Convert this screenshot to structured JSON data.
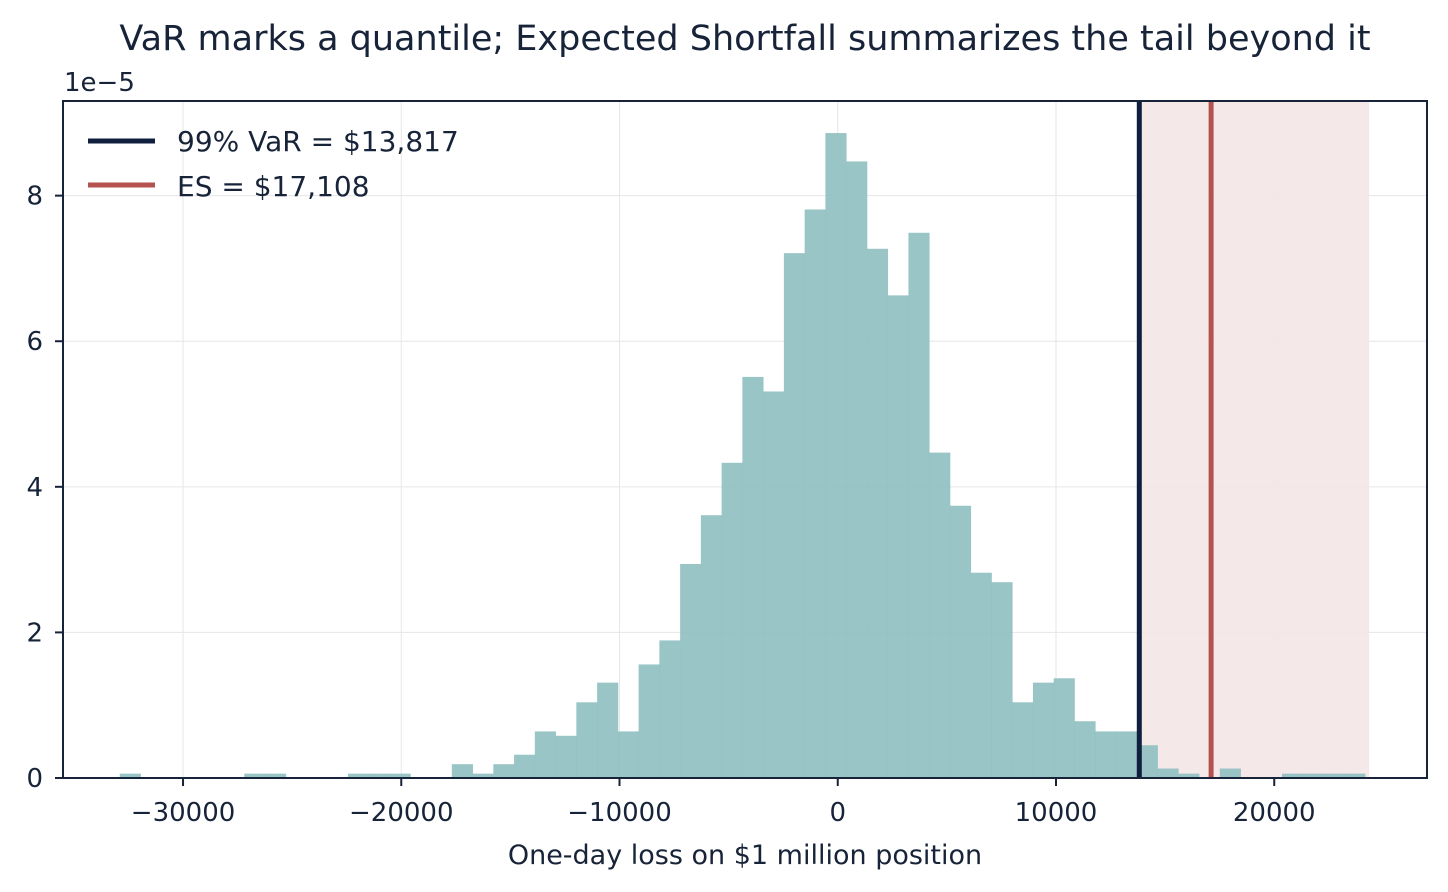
{
  "chart_data": {
    "type": "bar",
    "title": "VaR marks a quantile; Expected Shortfall summarizes the tail beyond it",
    "xlabel": "One-day loss on $1 million position",
    "ylabel": "",
    "y_offset_label": "1e−5",
    "y_scale": 1e-05,
    "xlim": [
      -35500,
      27000
    ],
    "ylim": [
      0,
      9.3
    ],
    "grid": true,
    "legend_position": "top-left",
    "x_ticks": [
      -30000,
      -20000,
      -10000,
      0,
      10000,
      20000
    ],
    "x_tick_labels": [
      "−30000",
      "−20000",
      "−10000",
      "0",
      "10000",
      "20000"
    ],
    "y_ticks": [
      0,
      2,
      4,
      6,
      8
    ],
    "y_tick_labels": [
      "0",
      "2",
      "4",
      "6",
      "8"
    ],
    "bin_width": 951,
    "bin_start": -32900,
    "bin_heights": [
      0.06,
      0.0,
      0.0,
      0.0,
      0.0,
      0.0,
      0.06,
      0.06,
      0.0,
      0.0,
      0.0,
      0.06,
      0.06,
      0.06,
      0.0,
      0.0,
      0.19,
      0.06,
      0.19,
      0.32,
      0.64,
      0.58,
      1.04,
      1.31,
      0.64,
      1.56,
      1.89,
      2.94,
      3.61,
      4.33,
      5.51,
      5.31,
      7.21,
      7.81,
      8.86,
      8.47,
      7.27,
      6.63,
      7.49,
      4.47,
      3.74,
      2.82,
      2.69,
      1.04,
      1.31,
      1.37,
      0.78,
      0.64,
      0.64,
      0.45,
      0.13,
      0.06,
      0.0,
      0.13,
      0.0,
      0.0,
      0.06,
      0.06,
      0.06,
      0.06
    ],
    "var_value": 13817,
    "es_value": 17108,
    "tail_max": 24350,
    "legend": [
      {
        "label": "99% VaR = $13,817",
        "color": "#0f1f3d"
      },
      {
        "label": "ES = $17,108",
        "color": "#b5524f"
      }
    ],
    "colors": {
      "bars": "#8fbfc0",
      "var_line": "#0f1f3d",
      "es_line": "#b5524f",
      "tail_shade": "#f4e6e6",
      "axes": "#172338",
      "grid": "#e6e6e6"
    }
  }
}
